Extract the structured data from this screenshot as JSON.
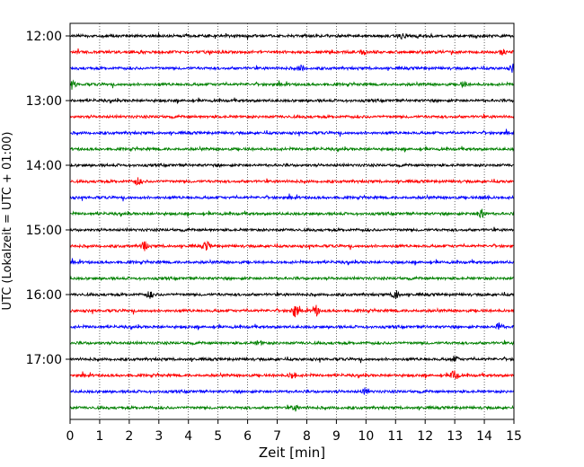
{
  "chart_data": {
    "type": "line",
    "title": "",
    "xlabel": "Zeit  [min]",
    "ylabel": "UTC (Lokalzeit = UTC + 01:00)",
    "xlim": [
      0,
      15
    ],
    "x_ticks": [
      "0",
      "1",
      "2",
      "3",
      "4",
      "5",
      "6",
      "7",
      "8",
      "9",
      "10",
      "11",
      "12",
      "13",
      "14",
      "15"
    ],
    "y_ticks": [
      "12:00",
      "13:00",
      "14:00",
      "15:00",
      "16:00",
      "17:00"
    ],
    "trace_interval_min": 15,
    "trace_starts": [
      "12:00",
      "12:15",
      "12:30",
      "12:45",
      "13:00",
      "13:15",
      "13:30",
      "13:45",
      "14:00",
      "14:15",
      "14:30",
      "14:45",
      "15:00",
      "15:15",
      "15:30",
      "15:45",
      "16:00",
      "16:15",
      "16:30",
      "16:45",
      "17:00",
      "17:15",
      "17:30",
      "17:45"
    ],
    "colors": [
      "#000000",
      "#ff0000",
      "#0000ff",
      "#008000"
    ],
    "grid": "vertical-dotted",
    "events": [
      {
        "trace": 0,
        "t": 11.2,
        "amp": 3
      },
      {
        "trace": 1,
        "t": 9.9,
        "amp": 3
      },
      {
        "trace": 1,
        "t": 14.6,
        "amp": 3
      },
      {
        "trace": 2,
        "t": 7.8,
        "amp": 3
      },
      {
        "trace": 2,
        "t": 15.0,
        "amp": 6
      },
      {
        "trace": 3,
        "t": 0.1,
        "amp": 3
      },
      {
        "trace": 3,
        "t": 13.3,
        "amp": 3
      },
      {
        "trace": 9,
        "t": 2.3,
        "amp": 4
      },
      {
        "trace": 10,
        "t": 14.0,
        "amp": 3
      },
      {
        "trace": 11,
        "t": 13.9,
        "amp": 7
      },
      {
        "trace": 13,
        "t": 2.5,
        "amp": 5
      },
      {
        "trace": 13,
        "t": 4.6,
        "amp": 5
      },
      {
        "trace": 16,
        "t": 2.7,
        "amp": 4
      },
      {
        "trace": 16,
        "t": 11.0,
        "amp": 6
      },
      {
        "trace": 17,
        "t": 7.6,
        "amp": 7
      },
      {
        "trace": 17,
        "t": 8.3,
        "amp": 6
      },
      {
        "trace": 18,
        "t": 14.5,
        "amp": 4
      },
      {
        "trace": 19,
        "t": 6.4,
        "amp": 2
      },
      {
        "trace": 20,
        "t": 13.0,
        "amp": 3
      },
      {
        "trace": 21,
        "t": 7.5,
        "amp": 4
      },
      {
        "trace": 21,
        "t": 13.0,
        "amp": 7
      },
      {
        "trace": 22,
        "t": 10.0,
        "amp": 4
      },
      {
        "trace": 23,
        "t": 7.6,
        "amp": 3
      }
    ]
  }
}
